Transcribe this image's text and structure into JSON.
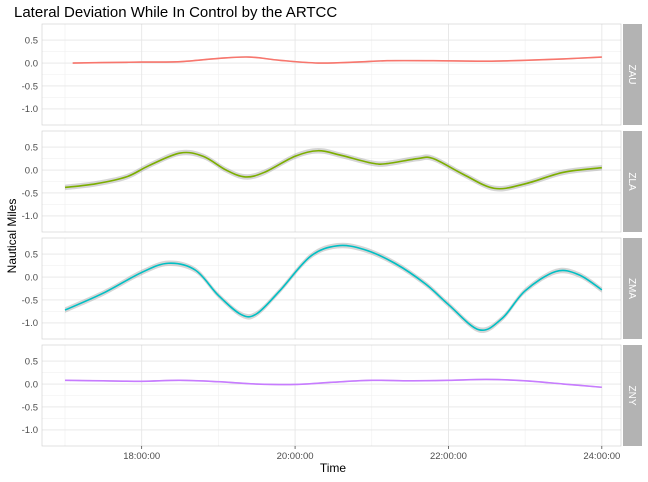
{
  "chart_data": {
    "type": "line",
    "title": "Lateral Deviation While In Control by the ARTCC",
    "xlabel": "Time",
    "ylabel": "Nautical Miles",
    "x_ticks": [
      "18:00:00",
      "20:00:00",
      "22:00:00",
      "24:00:00"
    ],
    "x_tick_values": [
      18,
      20,
      22,
      24
    ],
    "xlim": [
      16.7,
      24.25
    ],
    "ylim": [
      -1.35,
      0.85
    ],
    "y_ticks": [
      0.5,
      0.0,
      -0.5,
      -1.0
    ],
    "y_tick_labels": [
      "0.5",
      "0.0",
      "-0.5",
      "-1.0"
    ],
    "grid": true,
    "legend": "none",
    "facet": "rows",
    "series": [
      {
        "name": "ZAU",
        "color": "#F8766D",
        "band": 0.015,
        "points": [
          [
            17.1,
            0.0
          ],
          [
            17.5,
            0.01
          ],
          [
            18.0,
            0.02
          ],
          [
            18.5,
            0.03
          ],
          [
            19.0,
            0.1
          ],
          [
            19.4,
            0.13
          ],
          [
            19.8,
            0.06
          ],
          [
            20.3,
            0.0
          ],
          [
            20.8,
            0.02
          ],
          [
            21.2,
            0.05
          ],
          [
            21.8,
            0.05
          ],
          [
            22.5,
            0.04
          ],
          [
            23.0,
            0.06
          ],
          [
            23.5,
            0.09
          ],
          [
            24.0,
            0.13
          ]
        ]
      },
      {
        "name": "ZLA",
        "color": "#7CAE00",
        "band": 0.06,
        "points": [
          [
            17.0,
            -0.38
          ],
          [
            17.4,
            -0.3
          ],
          [
            17.8,
            -0.15
          ],
          [
            18.1,
            0.1
          ],
          [
            18.5,
            0.37
          ],
          [
            18.8,
            0.3
          ],
          [
            19.1,
            0.0
          ],
          [
            19.35,
            -0.15
          ],
          [
            19.6,
            -0.05
          ],
          [
            20.0,
            0.3
          ],
          [
            20.3,
            0.42
          ],
          [
            20.6,
            0.32
          ],
          [
            21.0,
            0.15
          ],
          [
            21.2,
            0.14
          ],
          [
            21.6,
            0.25
          ],
          [
            21.8,
            0.25
          ],
          [
            22.2,
            -0.1
          ],
          [
            22.6,
            -0.4
          ],
          [
            23.0,
            -0.3
          ],
          [
            23.5,
            -0.05
          ],
          [
            24.0,
            0.05
          ]
        ]
      },
      {
        "name": "ZMA",
        "color": "#00BFC4",
        "band": 0.06,
        "points": [
          [
            17.0,
            -0.72
          ],
          [
            17.5,
            -0.35
          ],
          [
            18.0,
            0.1
          ],
          [
            18.35,
            0.3
          ],
          [
            18.7,
            0.15
          ],
          [
            19.0,
            -0.4
          ],
          [
            19.3,
            -0.82
          ],
          [
            19.5,
            -0.8
          ],
          [
            19.8,
            -0.3
          ],
          [
            20.2,
            0.45
          ],
          [
            20.55,
            0.68
          ],
          [
            20.9,
            0.6
          ],
          [
            21.3,
            0.3
          ],
          [
            21.7,
            -0.15
          ],
          [
            22.0,
            -0.6
          ],
          [
            22.4,
            -1.15
          ],
          [
            22.7,
            -0.9
          ],
          [
            23.0,
            -0.3
          ],
          [
            23.4,
            0.12
          ],
          [
            23.7,
            0.05
          ],
          [
            24.0,
            -0.28
          ]
        ]
      },
      {
        "name": "ZNY",
        "color": "#C77CFF",
        "band": 0.015,
        "points": [
          [
            17.0,
            0.08
          ],
          [
            17.5,
            0.07
          ],
          [
            18.0,
            0.06
          ],
          [
            18.5,
            0.08
          ],
          [
            19.0,
            0.05
          ],
          [
            19.5,
            0.0
          ],
          [
            20.0,
            -0.01
          ],
          [
            20.5,
            0.04
          ],
          [
            21.0,
            0.08
          ],
          [
            21.5,
            0.07
          ],
          [
            22.0,
            0.08
          ],
          [
            22.5,
            0.1
          ],
          [
            23.0,
            0.07
          ],
          [
            23.5,
            0.0
          ],
          [
            24.0,
            -0.07
          ]
        ]
      }
    ]
  }
}
